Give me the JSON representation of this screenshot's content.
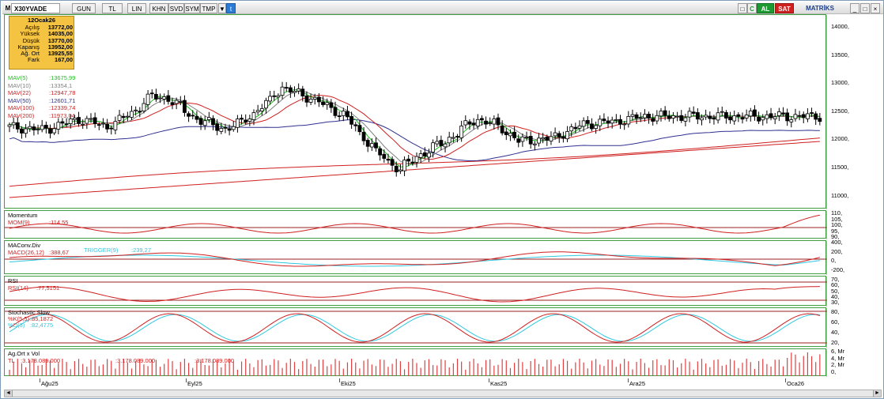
{
  "toolbar": {
    "m_label": "M",
    "symbol": "X30YVADE",
    "buttons": [
      "GUN",
      "TL",
      "LIN",
      "KHN",
      "SVD",
      "SYM",
      "TMP"
    ],
    "al_label": "AL",
    "sat_label": "SAT",
    "matriks_label": "MATRİKS",
    "c_label": "C"
  },
  "info": {
    "date": "12Ocak26",
    "rows": [
      {
        "k": "Açılış",
        "v": "13772,00"
      },
      {
        "k": "Yüksek",
        "v": "14035,00"
      },
      {
        "k": "Düşük",
        "v": "13770,00"
      },
      {
        "k": "Kapanış",
        "v": "13952,00"
      },
      {
        "k": "Ağ. Ort",
        "v": "13925,55"
      },
      {
        "k": "Fark",
        "v": "167,00"
      }
    ]
  },
  "mav": [
    {
      "label": "MAV(5)",
      "value": ":13675,99",
      "color": "#22c022"
    },
    {
      "label": "MAV(10)",
      "value": ":13354,1",
      "color": "#808080"
    },
    {
      "label": "MAV(22)",
      "value": ":12947,78",
      "color": "#d02020"
    },
    {
      "label": "MAV(50)",
      "value": ":12601,71",
      "color": "#303090"
    },
    {
      "label": "MAV(100)",
      "value": ":12339,74",
      "color": "#d02020"
    },
    {
      "label": "MAV(200)",
      "value": ":11973,04",
      "color": "#d02020"
    }
  ],
  "price_axis": [
    "14000,",
    "13500,",
    "13000,",
    "12500,",
    "12000,",
    "11500,",
    "11000,"
  ],
  "momentum": {
    "title": "Momentum",
    "label": "MOM(9)",
    "value": ":114,55",
    "axis": [
      "110,",
      "105,",
      "100,",
      "95,",
      "90,"
    ]
  },
  "macd": {
    "title": "MAConv.Div",
    "label": "MACD(26,12)",
    "value": ":388,67",
    "trig_label": "TRIGGER(9)",
    "trig_value": ":239,27",
    "axis": [
      "400,",
      "200,",
      "0,",
      "-200,"
    ]
  },
  "rsi": {
    "title": "RSI",
    "label": "RSI(14)",
    "value": ":77,5151",
    "axis": [
      "70,",
      "60,",
      "50,",
      "40,",
      "30,"
    ]
  },
  "stoch": {
    "title": "Stochastic Slow",
    "k_label": "%K(5,5)",
    "k_value": ":85,1872",
    "d_label": "%D(3)",
    "d_value": ":82,4775",
    "axis": [
      "80,",
      "60,",
      "40,",
      "20,"
    ]
  },
  "volume": {
    "title": "Ag.Ort x Vol",
    "label": "TL",
    "value": ":3.178.089.000",
    "extra1": ":3.178.089.000",
    "extra2": ":3.178.089.000",
    "axis": [
      "6, Mr",
      "4, Mr",
      "2, Mr",
      "0,"
    ]
  },
  "xaxis": [
    "Ağu25",
    "Eyl25",
    "Eki25",
    "Kas25",
    "Ara25",
    "Oca26"
  ],
  "colors": {
    "panel_border": "#40a040",
    "up": "#ffffff",
    "down": "#000000",
    "red": "#d02020",
    "green": "#22c022",
    "cyan": "#30c8e0",
    "navy": "#303090"
  }
}
